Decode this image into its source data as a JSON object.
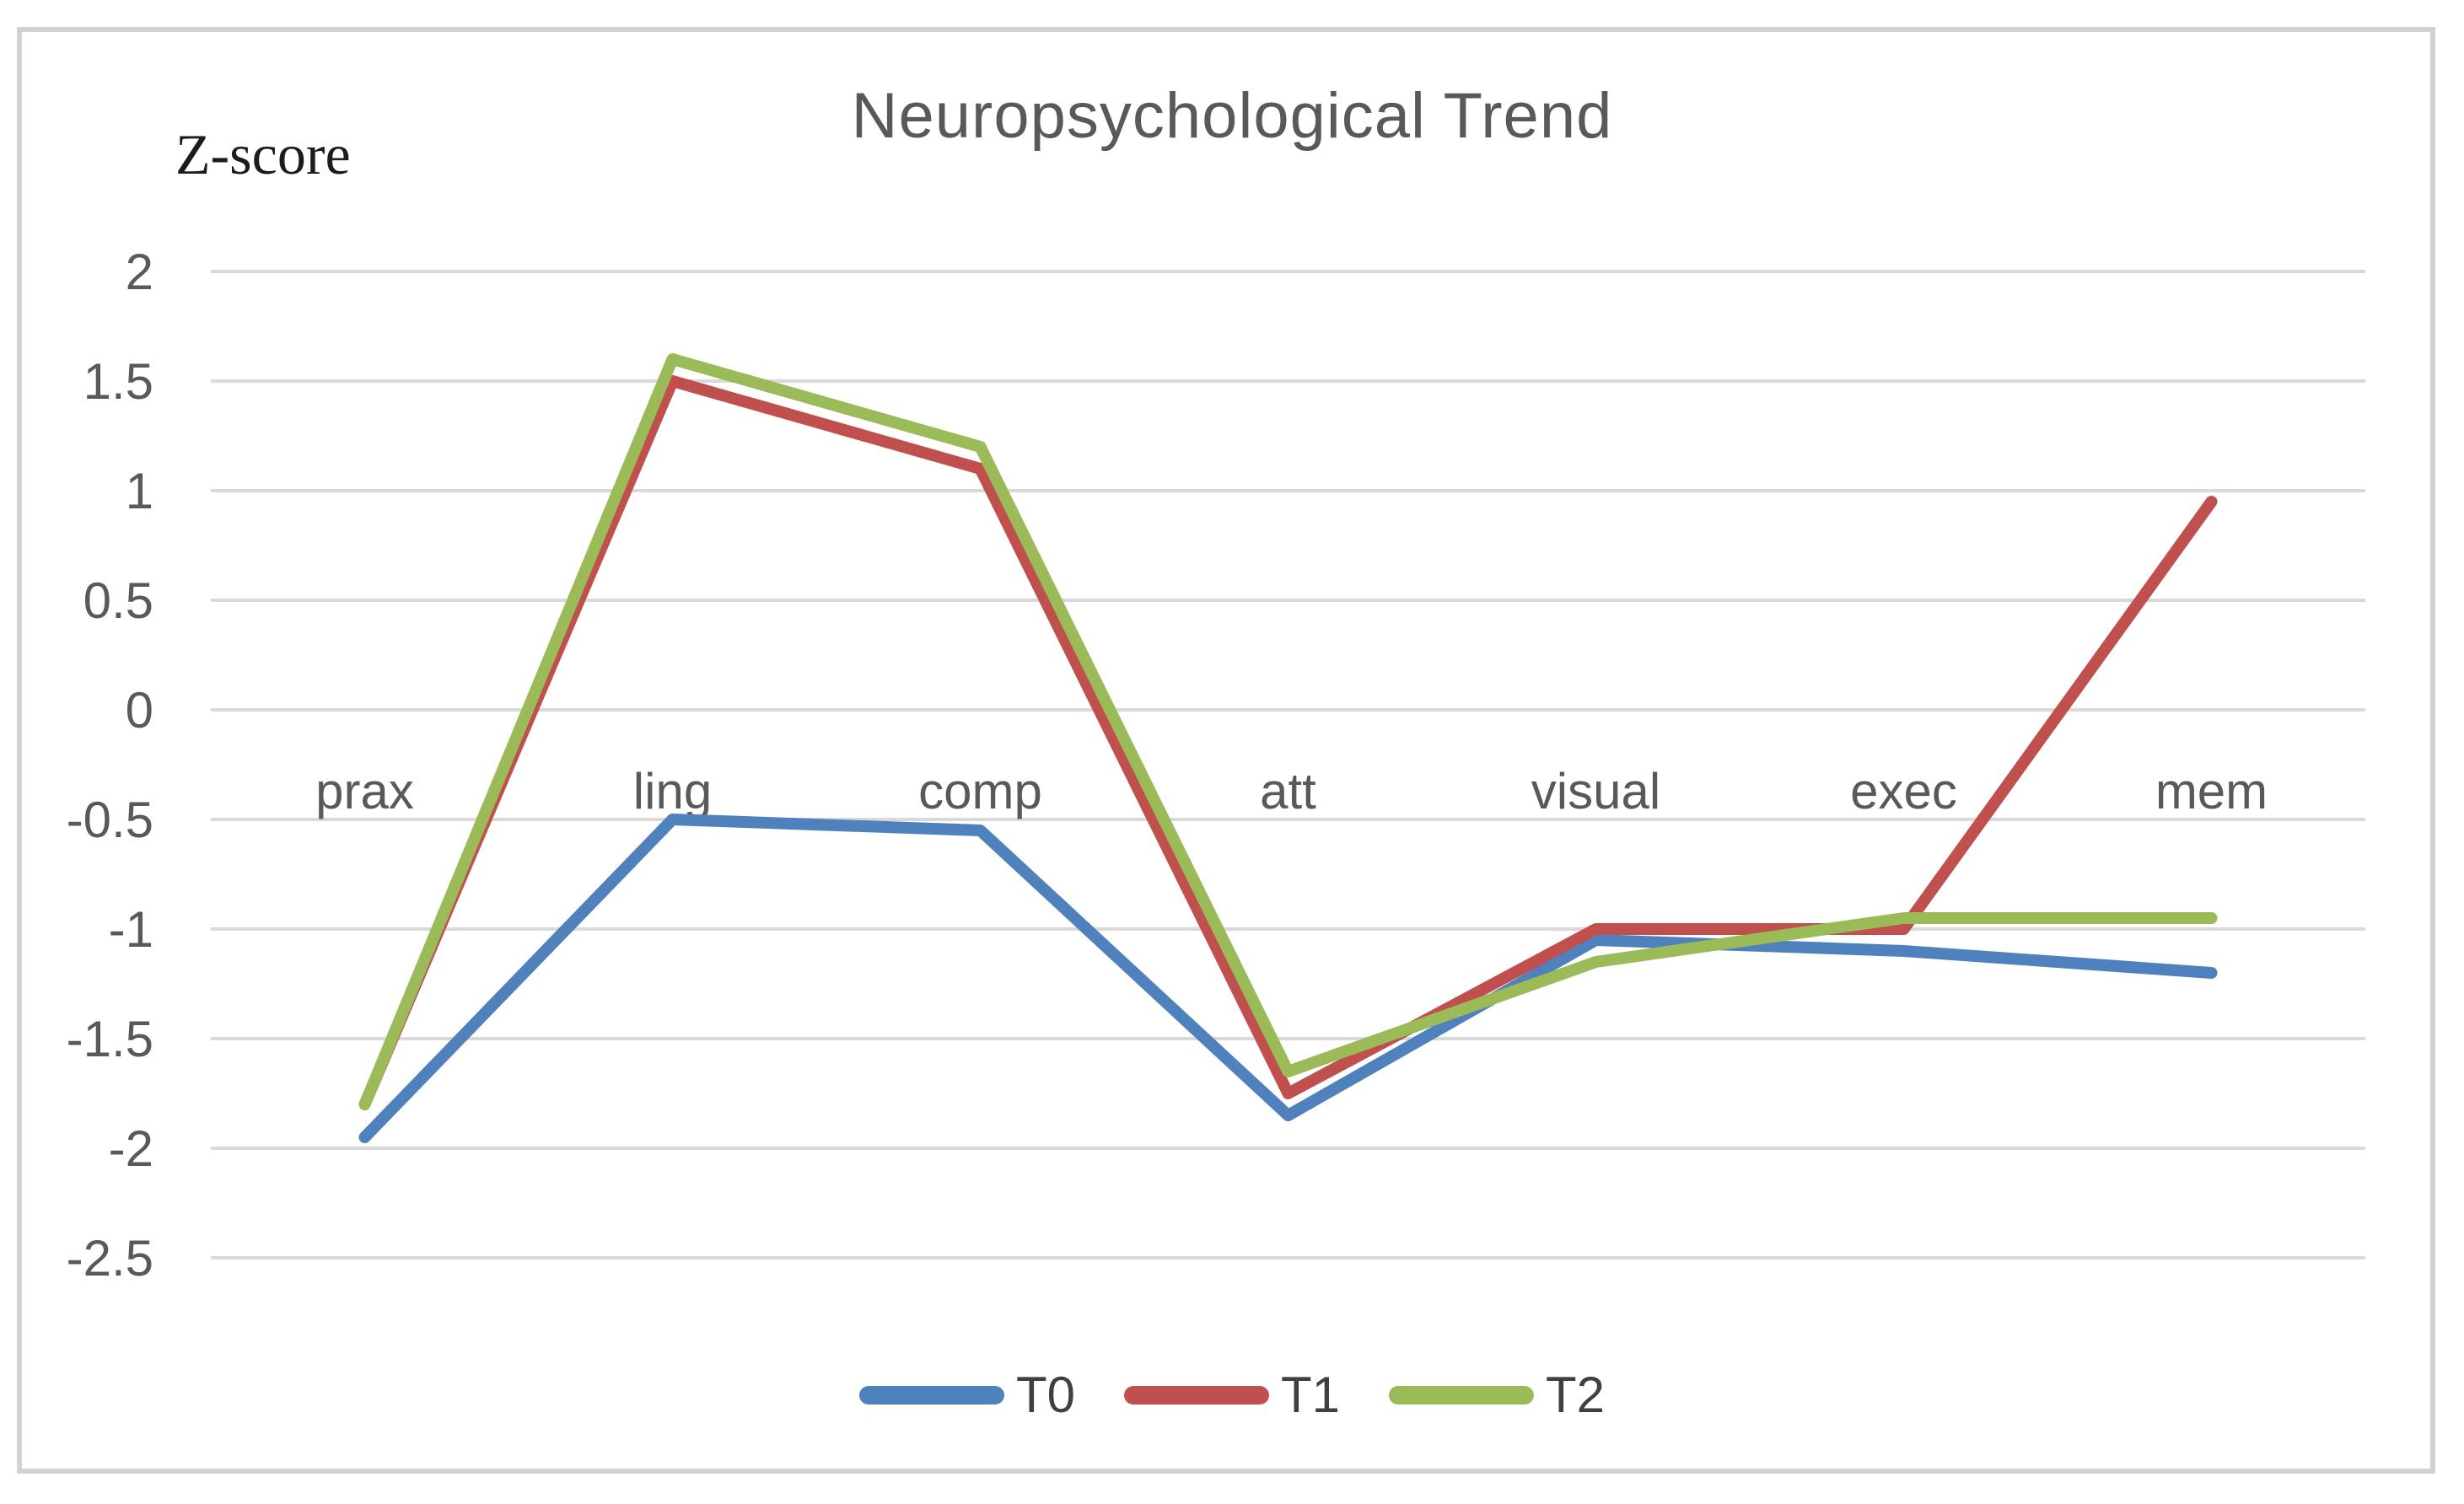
{
  "page": {
    "background_color": "#ffffff",
    "frame_border_color": "#d2d2d2"
  },
  "chart_data": {
    "type": "line",
    "title": "Neuropsychological Trend",
    "ylabel": "Z-score",
    "xlabel": "",
    "categories": [
      "prax",
      "ling",
      "comp",
      "att",
      "visual",
      "exec",
      "mem"
    ],
    "series": [
      {
        "name": "T0",
        "color": "#4F81BD",
        "values": [
          -1.95,
          -0.5,
          -0.55,
          -1.85,
          -1.05,
          -1.1,
          -1.2
        ]
      },
      {
        "name": "T1",
        "color": "#C0504D",
        "values": [
          -1.8,
          1.5,
          1.1,
          -1.75,
          -1.0,
          -1.0,
          0.95
        ]
      },
      {
        "name": "T2",
        "color": "#9BBB59",
        "values": [
          -1.8,
          1.6,
          1.2,
          -1.65,
          -1.15,
          -0.95,
          -0.95
        ]
      }
    ],
    "y_ticks": [
      "2",
      "1.5",
      "1",
      "0.5",
      "0",
      "-0.5",
      "-1",
      "-1.5",
      "-2",
      "-2.5"
    ],
    "ylim": [
      -2.5,
      2
    ],
    "grid": true,
    "gridline_color": "#d9d9d9",
    "tick_text_color": "#595959",
    "legend_text_color": "#404040",
    "legend_position": "bottom",
    "legend_entries": [
      "T0",
      "T1",
      "T2"
    ]
  }
}
